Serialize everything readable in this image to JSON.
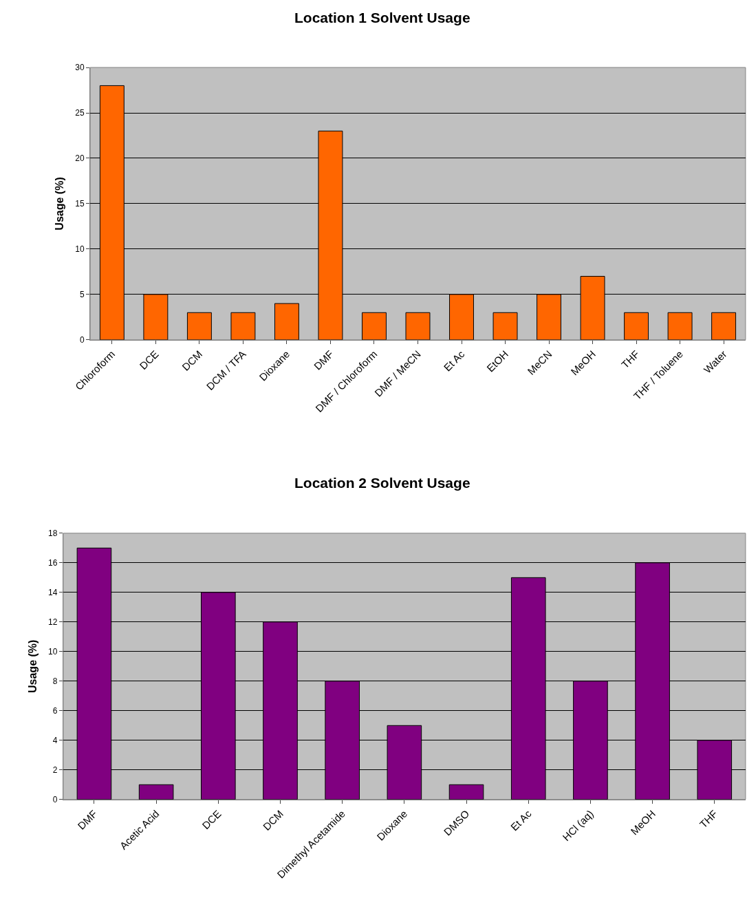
{
  "chart_data": [
    {
      "type": "bar",
      "title": "Location 1 Solvent Usage",
      "ylabel": "Usage (%)",
      "categories": [
        "Chloroform",
        "DCE",
        "DCM",
        "DCM / TFA",
        "Dioxane",
        "DMF",
        "DMF / Chloroform",
        "DMF / MeCN",
        "Et Ac",
        "EtOH",
        "MeCN",
        "MeOH",
        "THF",
        "THF / Toluene",
        "Water"
      ],
      "values": [
        28,
        5,
        3,
        3,
        4,
        23,
        3,
        3,
        5,
        3,
        5,
        7,
        3,
        3,
        3
      ],
      "color": "#ff6600",
      "ylim": [
        0,
        30
      ],
      "yticks": [
        0,
        5,
        10,
        15,
        20,
        25,
        30
      ],
      "grid": "y"
    },
    {
      "type": "bar",
      "title": "Location 2 Solvent Usage",
      "ylabel": "Usage (%)",
      "categories": [
        "DMF",
        "Acetic Acid",
        "DCE",
        "DCM",
        "Dimethyl Acetamide",
        "Dioxane",
        "DMSO",
        "Et Ac",
        "HCl (aq)",
        "MeOH",
        "THF"
      ],
      "values": [
        17,
        1,
        14,
        12,
        8,
        5,
        1,
        15,
        8,
        16,
        4
      ],
      "color": "#800080",
      "ylim": [
        0,
        18
      ],
      "yticks": [
        0,
        2,
        4,
        6,
        8,
        10,
        12,
        14,
        16,
        18
      ],
      "grid": "y"
    }
  ]
}
